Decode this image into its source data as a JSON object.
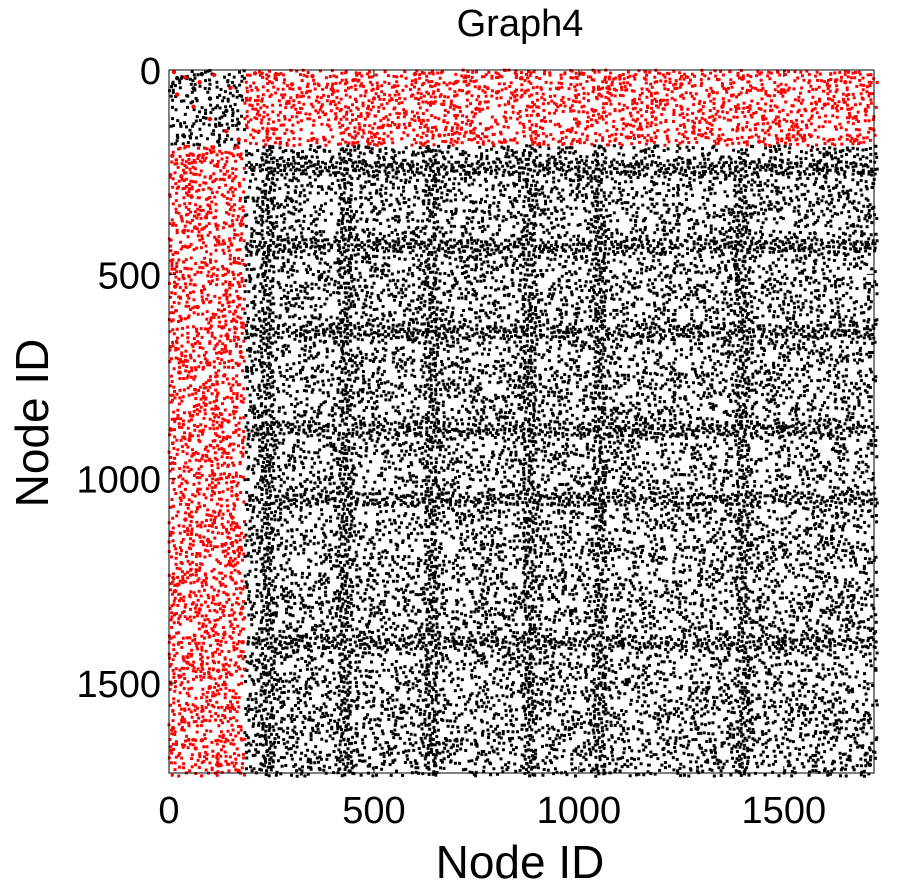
{
  "chart_data": {
    "type": "scatter",
    "title": "Graph4",
    "xlabel": "Node ID",
    "ylabel": "Node ID",
    "xlim": [
      0,
      1720
    ],
    "ylim": [
      0,
      1720
    ],
    "y_inverted": true,
    "xticks": [
      0,
      500,
      1000,
      1500
    ],
    "yticks": [
      0,
      500,
      1000,
      1500
    ],
    "xtick_labels": [
      "0",
      "500",
      "1000",
      "1500"
    ],
    "ytick_labels": [
      "0",
      "500",
      "1000",
      "1500"
    ],
    "grid": false,
    "legend": "none",
    "colors": {
      "highlight": "#ff0000",
      "base": "#000000"
    },
    "highlight_block_end": 185,
    "series": [
      {
        "color": "#ff0000",
        "description_points": "entries with row < 185 or column < 185",
        "points": [
          [
            12,
            5
          ],
          [
            40,
            18
          ],
          [
            75,
            30
          ],
          [
            110,
            12
          ],
          [
            150,
            44
          ],
          [
            20,
            60
          ],
          [
            60,
            90
          ],
          [
            100,
            120
          ],
          [
            140,
            150
          ],
          [
            170,
            170
          ],
          [
            210,
            8
          ],
          [
            260,
            20
          ],
          [
            300,
            35
          ],
          [
            350,
            15
          ],
          [
            400,
            50
          ],
          [
            450,
            25
          ],
          [
            500,
            70
          ],
          [
            550,
            40
          ],
          [
            600,
            10
          ],
          [
            640,
            80
          ],
          [
            700,
            30
          ],
          [
            750,
            95
          ],
          [
            800,
            55
          ],
          [
            860,
            20
          ],
          [
            900,
            110
          ],
          [
            950,
            45
          ],
          [
            1000,
            130
          ],
          [
            1050,
            60
          ],
          [
            1100,
            15
          ],
          [
            1150,
            140
          ],
          [
            1200,
            75
          ],
          [
            1250,
            35
          ],
          [
            1300,
            160
          ],
          [
            1350,
            90
          ],
          [
            1400,
            20
          ],
          [
            1450,
            120
          ],
          [
            1500,
            50
          ],
          [
            1550,
            170
          ],
          [
            1600,
            85
          ],
          [
            1650,
            30
          ],
          [
            1700,
            100
          ],
          [
            240,
            150
          ],
          [
            380,
            170
          ],
          [
            520,
            140
          ],
          [
            660,
            160
          ],
          [
            820,
            175
          ],
          [
            980,
            150
          ],
          [
            1120,
            165
          ],
          [
            1280,
            140
          ],
          [
            1440,
            175
          ],
          [
            8,
            210
          ],
          [
            30,
            260
          ],
          [
            55,
            310
          ],
          [
            90,
            360
          ],
          [
            120,
            420
          ],
          [
            160,
            470
          ],
          [
            15,
            530
          ],
          [
            70,
            580
          ],
          [
            130,
            630
          ],
          [
            175,
            690
          ],
          [
            25,
            740
          ],
          [
            85,
            800
          ],
          [
            145,
            860
          ],
          [
            5,
            880
          ],
          [
            60,
            940
          ],
          [
            110,
            990
          ],
          [
            165,
            1040
          ],
          [
            40,
            1100
          ],
          [
            95,
            1150
          ],
          [
            150,
            1210
          ],
          [
            20,
            1260
          ],
          [
            75,
            1320
          ],
          [
            135,
            1380
          ],
          [
            180,
            1400
          ],
          [
            45,
            1450
          ],
          [
            100,
            1510
          ],
          [
            155,
            1560
          ],
          [
            10,
            1610
          ],
          [
            65,
            1660
          ],
          [
            125,
            1700
          ],
          [
            170,
            1715
          ],
          [
            35,
            395
          ],
          [
            140,
            540
          ],
          [
            95,
            720
          ],
          [
            50,
            905
          ],
          [
            155,
            1095
          ],
          [
            15,
            1275
          ],
          [
            120,
            1470
          ],
          [
            80,
            1640
          ],
          [
            175,
            1330
          ]
        ]
      },
      {
        "color": "#000000",
        "description_points": "entries with row >= 185 and column >= 185, plus the top-left block",
        "points": [
          [
            20,
            20
          ],
          [
            60,
            45
          ],
          [
            100,
            70
          ],
          [
            140,
            100
          ],
          [
            170,
            130
          ],
          [
            35,
            160
          ],
          [
            120,
            175
          ],
          [
            80,
            10
          ],
          [
            250,
            250
          ],
          [
            300,
            320
          ],
          [
            360,
            400
          ],
          [
            420,
            470
          ],
          [
            480,
            530
          ],
          [
            540,
            600
          ],
          [
            600,
            660
          ],
          [
            650,
            640
          ],
          [
            700,
            720
          ],
          [
            760,
            780
          ],
          [
            820,
            850
          ],
          [
            880,
            880
          ],
          [
            940,
            950
          ],
          [
            1000,
            1010
          ],
          [
            1060,
            1080
          ],
          [
            1120,
            1130
          ],
          [
            1180,
            1200
          ],
          [
            1240,
            1260
          ],
          [
            1300,
            1310
          ],
          [
            1360,
            1380
          ],
          [
            1420,
            1440
          ],
          [
            1480,
            1500
          ],
          [
            1540,
            1560
          ],
          [
            1600,
            1620
          ],
          [
            1660,
            1680
          ],
          [
            1710,
            1700
          ],
          [
            880,
            300
          ],
          [
            880,
            600
          ],
          [
            880,
            1100
          ],
          [
            880,
            1500
          ],
          [
            640,
            350
          ],
          [
            640,
            900
          ],
          [
            640,
            1300
          ],
          [
            640,
            1650
          ],
          [
            300,
            880
          ],
          [
            700,
            880
          ],
          [
            1100,
            880
          ],
          [
            1500,
            880
          ],
          [
            400,
            640
          ],
          [
            1000,
            640
          ],
          [
            1400,
            640
          ],
          [
            1650,
            640
          ],
          [
            300,
            1400
          ],
          [
            700,
            1400
          ],
          [
            1100,
            1400
          ],
          [
            1500,
            1400
          ],
          [
            1000,
            260
          ],
          [
            1300,
            260
          ],
          [
            1600,
            260
          ],
          [
            500,
            260
          ],
          [
            230,
            1000
          ],
          [
            230,
            500
          ],
          [
            230,
            1600
          ],
          [
            1200,
            450
          ],
          [
            1500,
            700
          ],
          [
            1350,
            1100
          ],
          [
            1050,
            1550
          ],
          [
            750,
            1650
          ],
          [
            450,
            1200
          ],
          [
            350,
            750
          ]
        ]
      }
    ]
  }
}
